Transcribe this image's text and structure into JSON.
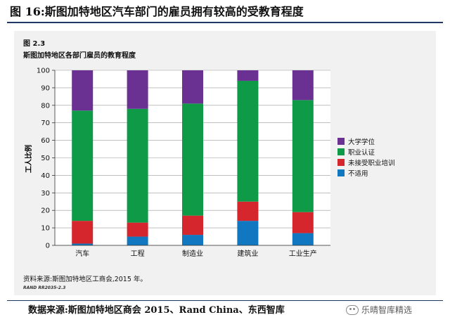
{
  "figure": {
    "title": "图 16:斯图加特地区汽车部门的雇员拥有较高的受教育程度",
    "source_footer": "数据来源:斯图加特地区商会 2015、Rand China、东西智库",
    "watermark": "乐晴智库精选",
    "watermark_icon": "wechat-icon"
  },
  "panel": {
    "fig_number": "图 2.3",
    "title": "斯图加特地区各部门雇员的教育程度",
    "source": "资料来源:斯图加特地区工商会,2015 年。",
    "code": "RAND RR2035-2.3"
  },
  "chart_data": {
    "type": "bar",
    "stacked": true,
    "categories": [
      "汽车",
      "工程",
      "制造业",
      "建筑业",
      "工业生产"
    ],
    "series": [
      {
        "name": "不适用",
        "color": "#1177c0",
        "values": [
          1,
          5,
          6,
          14,
          7
        ]
      },
      {
        "name": "未接受职业培训",
        "color": "#d6262d",
        "values": [
          13,
          8,
          11,
          11,
          12
        ]
      },
      {
        "name": "职业认证",
        "color": "#0f9a48",
        "values": [
          63,
          65,
          64,
          69,
          64
        ]
      },
      {
        "name": "大学学位",
        "color": "#6a3192",
        "values": [
          23,
          22,
          19,
          6,
          17
        ]
      }
    ],
    "ylabel": "工人比例",
    "ylim": [
      0,
      100
    ],
    "yticks": [
      0,
      10,
      20,
      30,
      40,
      50,
      60,
      70,
      80,
      90,
      100
    ],
    "grid": true,
    "legend_position": "right",
    "legend_order": [
      "大学学位",
      "职业认证",
      "未接受职业培训",
      "不适用"
    ]
  }
}
